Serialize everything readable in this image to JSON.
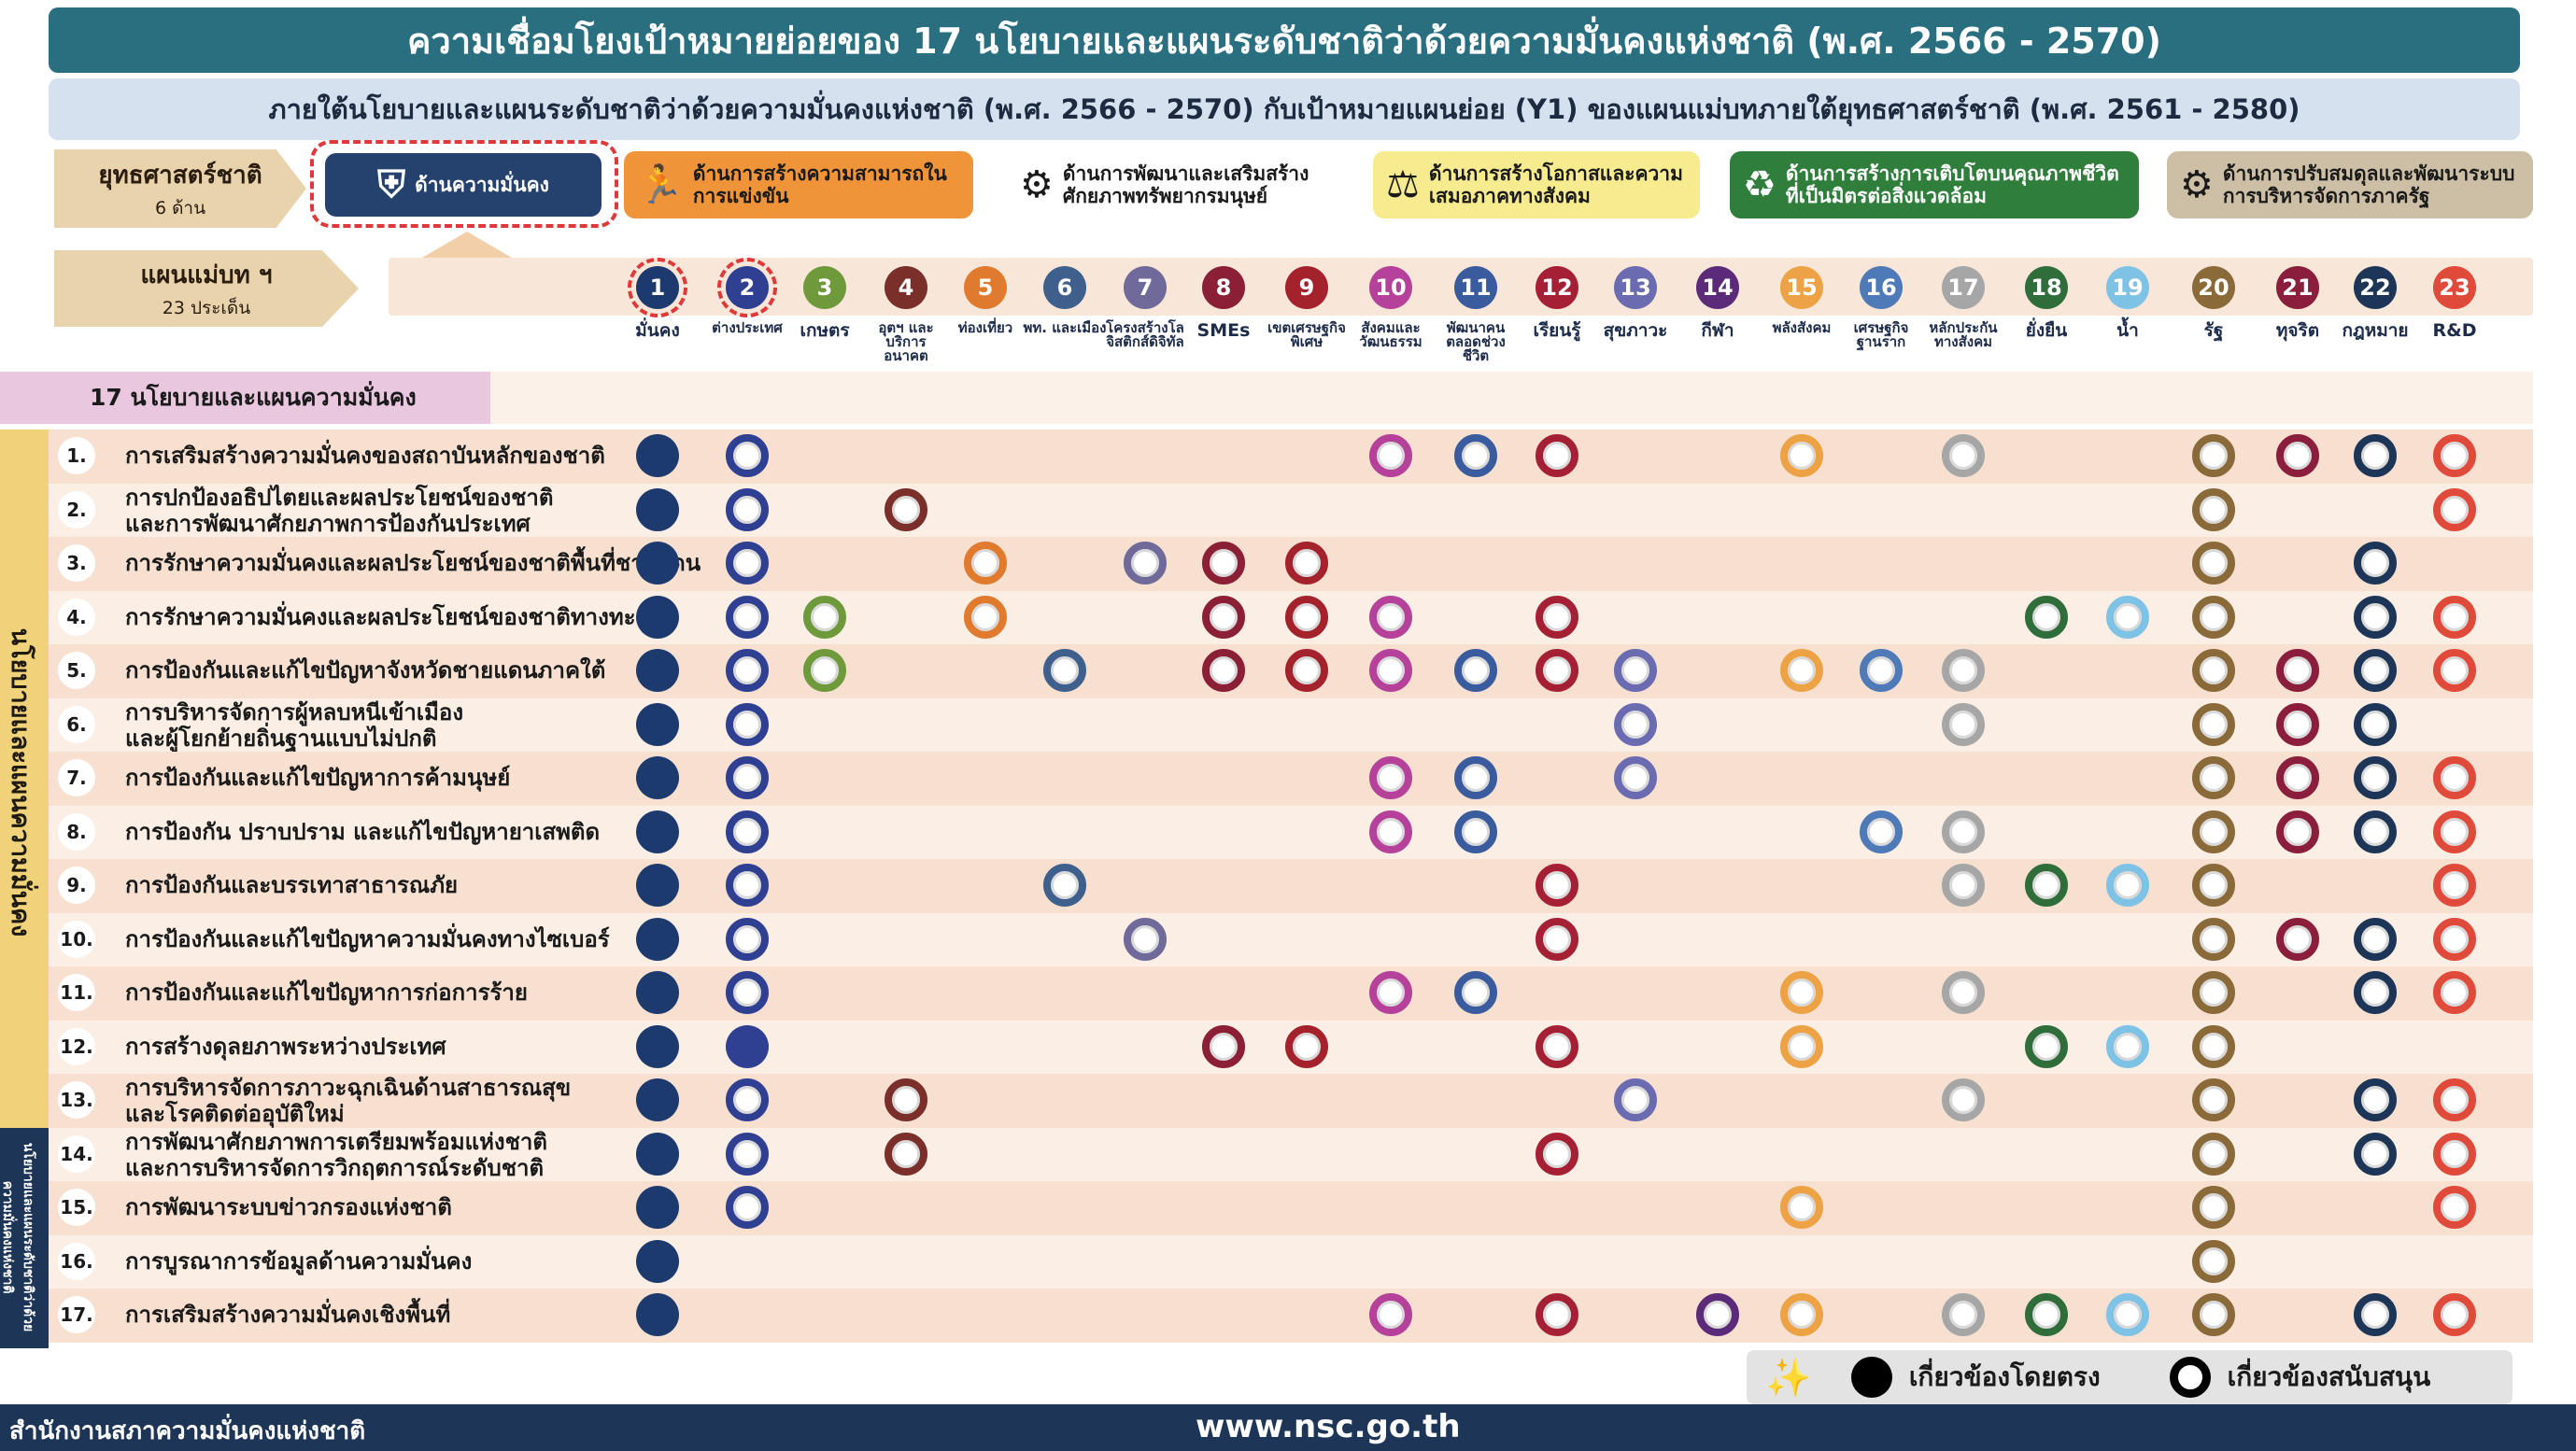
{
  "title": "ความเชื่อมโยงเป้าหมายย่อยของ 17 นโยบายและแผนระดับชาติว่าด้วยความมั่นคงแห่งชาติ (พ.ศ. 2566 - 2570)",
  "subtitle": "ภายใต้นโยบายและแผนระดับชาติว่าด้วยความมั่นคงแห่งชาติ (พ.ศ. 2566 - 2570) กับเป้าหมายแผนย่อย (Y1) ของแผนแม่บทภายใต้ยุทธศาสตร์ชาติ (พ.ศ. 2561 - 2580)",
  "strategy_label": {
    "title": "ยุทธศาสตร์ชาติ",
    "sub": "6 ด้าน"
  },
  "masterplan_label": {
    "title": "แผนแม่บท ฯ",
    "sub": "23 ประเด็น"
  },
  "strategies": [
    {
      "label": "ด้านความมั่นคง",
      "icon": "security-icon",
      "bg": "#25416e",
      "fg": "#ffffff",
      "glyph": "⛨"
    },
    {
      "label": "ด้านการสร้างความสามารถในการแข่งขัน",
      "icon": "runner-icon",
      "bg": "#f0943a",
      "fg": "#1a1a1a",
      "glyph": "🏃"
    },
    {
      "label": "ด้านการพัฒนาและเสริมสร้างศักยภาพทรัพยากรมนุษย์",
      "icon": "human-resource-icon",
      "bg": "#ffffff",
      "fg": "#1a1a1a",
      "glyph": "⚙"
    },
    {
      "label": "ด้านการสร้างโอกาสและความเสมอภาคทางสังคม",
      "icon": "scales-icon",
      "bg": "#f6eb8e",
      "fg": "#1a1a1a",
      "glyph": "⚖"
    },
    {
      "label": "ด้านการสร้างการเติบโตบนคุณภาพชีวิตที่เป็นมิตรต่อสิ่งแวดล้อม",
      "icon": "eco-icon",
      "bg": "#2f7e3c",
      "fg": "#ffffff",
      "glyph": "♻"
    },
    {
      "label": "ด้านการปรับสมดุลและพัฒนาระบบการบริหารจัดการภาครัฐ",
      "icon": "government-icon",
      "bg": "#cdbfa6",
      "fg": "#1a1a1a",
      "glyph": "⚙"
    }
  ],
  "plans": [
    {
      "num": "1",
      "label": "มั่นคง",
      "color": "#1d3a6e"
    },
    {
      "num": "2",
      "label": "ต่างประเทศ",
      "color": "#2f3f92"
    },
    {
      "num": "3",
      "label": "เกษตร",
      "color": "#6f9a3c"
    },
    {
      "num": "4",
      "label": "อุตฯ และบริการอนาคต",
      "color": "#7a2f2a"
    },
    {
      "num": "5",
      "label": "ท่องเที่ยว",
      "color": "#e07a2e"
    },
    {
      "num": "6",
      "label": "พท. และเมือง",
      "color": "#3f5f8c"
    },
    {
      "num": "7",
      "label": "โครงสร้างโลจิสติกส์ดิจิทัล",
      "color": "#6f6a99"
    },
    {
      "num": "8",
      "label": "SMEs",
      "color": "#8a1f36"
    },
    {
      "num": "9",
      "label": "เขตเศรษฐกิจพิเศษ",
      "color": "#a4222c"
    },
    {
      "num": "10",
      "label": "สังคมและวัฒนธรรม",
      "color": "#b5419a"
    },
    {
      "num": "11",
      "label": "พัฒนาคนตลอดช่วงชีวิต",
      "color": "#3a5c9e"
    },
    {
      "num": "12",
      "label": "เรียนรู้",
      "color": "#a52035"
    },
    {
      "num": "13",
      "label": "สุขภาวะ",
      "color": "#6a6bb0"
    },
    {
      "num": "14",
      "label": "กีฬา",
      "color": "#5b2a78"
    },
    {
      "num": "15",
      "label": "พลังสังคม",
      "color": "#eda345"
    },
    {
      "num": "16",
      "label": "เศรษฐกิจฐานราก",
      "color": "#4e7ab8"
    },
    {
      "num": "17",
      "label": "หลักประกันทางสังคม",
      "color": "#a6a6a6"
    },
    {
      "num": "18",
      "label": "ยั่งยืน",
      "color": "#2f6d3a"
    },
    {
      "num": "19",
      "label": "น้ำ",
      "color": "#7ec3e6"
    },
    {
      "num": "20",
      "label": "รัฐ",
      "color": "#8b6a3a"
    },
    {
      "num": "21",
      "label": "ทุจริต",
      "color": "#8a1e3c"
    },
    {
      "num": "22",
      "label": "กฎหมาย",
      "color": "#1d3557"
    },
    {
      "num": "23",
      "label": "R&D",
      "color": "#e04a3a"
    }
  ],
  "policies_header": "17 นโยบายและแผนความมั่นคง",
  "side_label": "นโยบายและแผนความมั่นคง",
  "side_label_bottom": "นโยบายและแผนระดับชาติว่าด้วยความมั่นคงแห่งชาติ",
  "policies": [
    {
      "num": "1.",
      "lines": [
        "การเสริมสร้างความมั่นคงของสถาบันหลักของชาติ"
      ],
      "marks": {
        "1": "d",
        "2": "s",
        "10": "s",
        "11": "s",
        "12": "s",
        "15": "s",
        "17": "s",
        "20": "s",
        "21": "s",
        "22": "s",
        "23": "s"
      }
    },
    {
      "num": "2.",
      "lines": [
        "การปกป้องอธิปไตยและผลประโยชน์ของชาติ",
        "และการพัฒนาศักยภาพการป้องกันประเทศ"
      ],
      "marks": {
        "1": "d",
        "2": "s",
        "4": "s",
        "20": "s",
        "23": "s"
      }
    },
    {
      "num": "3.",
      "lines": [
        "การรักษาความมั่นคงและผลประโยชน์ของชาติพื้นที่ชายแดน"
      ],
      "marks": {
        "1": "d",
        "2": "s",
        "5": "s",
        "7": "s",
        "8": "s",
        "9": "s",
        "20": "s",
        "22": "s"
      }
    },
    {
      "num": "4.",
      "lines": [
        "การรักษาความมั่นคงและผลประโยชน์ของชาติทางทะเล"
      ],
      "marks": {
        "1": "d",
        "2": "s",
        "3": "s",
        "5": "s",
        "8": "s",
        "9": "s",
        "10": "s",
        "12": "s",
        "18": "s",
        "19": "s",
        "20": "s",
        "22": "s",
        "23": "s"
      }
    },
    {
      "num": "5.",
      "lines": [
        "การป้องกันและแก้ไขปัญหาจังหวัดชายแดนภาคใต้"
      ],
      "marks": {
        "1": "d",
        "2": "s",
        "3": "s",
        "6": "s",
        "8": "s",
        "9": "s",
        "10": "s",
        "11": "s",
        "12": "s",
        "13": "s",
        "15": "s",
        "16": "s",
        "17": "s",
        "20": "s",
        "21": "s",
        "22": "s",
        "23": "s"
      }
    },
    {
      "num": "6.",
      "lines": [
        "การบริหารจัดการผู้หลบหนีเข้าเมือง",
        "และผู้โยกย้ายถิ่นฐานแบบไม่ปกติ"
      ],
      "marks": {
        "1": "d",
        "2": "s",
        "13": "s",
        "17": "s",
        "20": "s",
        "21": "s",
        "22": "s"
      }
    },
    {
      "num": "7.",
      "lines": [
        "การป้องกันและแก้ไขปัญหาการค้ามนุษย์"
      ],
      "marks": {
        "1": "d",
        "2": "s",
        "10": "s",
        "11": "s",
        "13": "s",
        "20": "s",
        "21": "s",
        "22": "s",
        "23": "s"
      }
    },
    {
      "num": "8.",
      "lines": [
        "การป้องกัน ปราบปราม และแก้ไขปัญหายาเสพติด"
      ],
      "marks": {
        "1": "d",
        "2": "s",
        "10": "s",
        "11": "s",
        "16": "s",
        "17": "s",
        "20": "s",
        "21": "s",
        "22": "s",
        "23": "s"
      }
    },
    {
      "num": "9.",
      "lines": [
        "การป้องกันและบรรเทาสาธารณภัย"
      ],
      "marks": {
        "1": "d",
        "2": "s",
        "6": "s",
        "12": "s",
        "17": "s",
        "18": "s",
        "19": "s",
        "20": "s",
        "23": "s"
      }
    },
    {
      "num": "10.",
      "lines": [
        "การป้องกันและแก้ไขปัญหาความมั่นคงทางไซเบอร์"
      ],
      "marks": {
        "1": "d",
        "2": "s",
        "7": "s",
        "12": "s",
        "20": "s",
        "21": "s",
        "22": "s",
        "23": "s"
      }
    },
    {
      "num": "11.",
      "lines": [
        "การป้องกันและแก้ไขปัญหาการก่อการร้าย"
      ],
      "marks": {
        "1": "d",
        "2": "s",
        "10": "s",
        "11": "s",
        "15": "s",
        "17": "s",
        "20": "s",
        "22": "s",
        "23": "s"
      }
    },
    {
      "num": "12.",
      "lines": [
        "การสร้างดุลยภาพระหว่างประเทศ"
      ],
      "marks": {
        "1": "d",
        "2": "d",
        "8": "s",
        "9": "s",
        "12": "s",
        "15": "s",
        "18": "s",
        "19": "s",
        "20": "s"
      }
    },
    {
      "num": "13.",
      "lines": [
        "การบริหารจัดการภาวะฉุกเฉินด้านสาธารณสุข",
        "และโรคติดต่ออุบัติใหม่"
      ],
      "marks": {
        "1": "d",
        "2": "s",
        "4": "s",
        "13": "s",
        "17": "s",
        "20": "s",
        "22": "s",
        "23": "s"
      }
    },
    {
      "num": "14.",
      "lines": [
        "การพัฒนาศักยภาพการเตรียมพร้อมแห่งชาติ",
        "และการบริหารจัดการวิกฤตการณ์ระดับชาติ"
      ],
      "marks": {
        "1": "d",
        "2": "s",
        "4": "s",
        "12": "s",
        "20": "s",
        "22": "s",
        "23": "s"
      }
    },
    {
      "num": "15.",
      "lines": [
        "การพัฒนาระบบข่าวกรองแห่งชาติ"
      ],
      "marks": {
        "1": "d",
        "2": "s",
        "15": "s",
        "20": "s",
        "23": "s"
      }
    },
    {
      "num": "16.",
      "lines": [
        "การบูรณาการข้อมูลด้านความมั่นคง"
      ],
      "marks": {
        "1": "d",
        "20": "s"
      }
    },
    {
      "num": "17.",
      "lines": [
        "การเสริมสร้างความมั่นคงเชิงพื้นที่"
      ],
      "marks": {
        "1": "d",
        "10": "s",
        "12": "s",
        "14": "s",
        "15": "s",
        "17": "s",
        "18": "s",
        "19": "s",
        "20": "s",
        "22": "s",
        "23": "s"
      }
    }
  ],
  "legend": {
    "direct": "เกี่ยวข้องโดยตรง",
    "support": "เกี่ยวข้องสนับสนุน",
    "icon": "sparkle-icon"
  },
  "footer": {
    "org": "สำนักงานสภาความมั่นคงแห่งชาติ",
    "url": "www.nsc.go.th"
  }
}
